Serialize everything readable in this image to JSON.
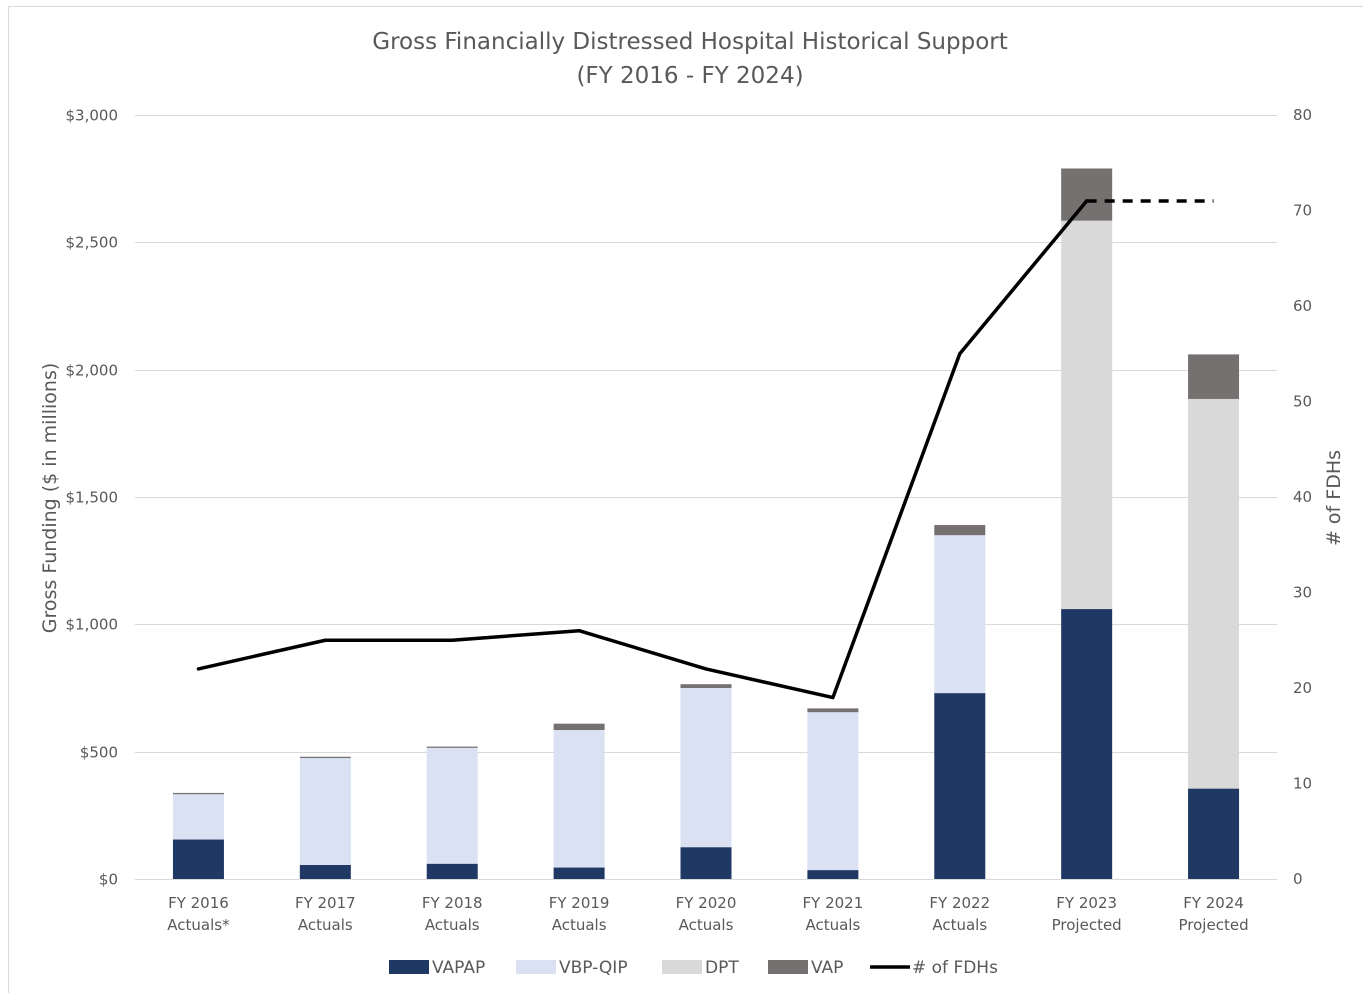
{
  "chart_data": {
    "type": "bar",
    "stacked": true,
    "title": "Gross Financially Distressed Hospital Historical Support",
    "subtitle": "(FY 2016 - FY 2024)",
    "ylabel": "Gross Funding ($ in millions)",
    "y2label": "# of FDHs",
    "ylim": [
      0,
      3000
    ],
    "y2lim": [
      0,
      80
    ],
    "yticks": [
      0,
      500,
      1000,
      1500,
      2000,
      2500,
      3000
    ],
    "ytick_labels": [
      "$0",
      "$500",
      "$1,000",
      "$1,500",
      "$2,000",
      "$2,500",
      "$3,000"
    ],
    "y2ticks": [
      0,
      10,
      20,
      30,
      40,
      50,
      60,
      70,
      80
    ],
    "y2tick_labels": [
      "0",
      "10",
      "20",
      "30",
      "40",
      "50",
      "60",
      "70",
      "80"
    ],
    "grid": true,
    "legend_position": "bottom",
    "categories": [
      {
        "line1": "FY 2016",
        "line2": "Actuals*"
      },
      {
        "line1": "FY 2017",
        "line2": "Actuals"
      },
      {
        "line1": "FY 2018",
        "line2": "Actuals"
      },
      {
        "line1": "FY 2019",
        "line2": "Actuals"
      },
      {
        "line1": "FY 2020",
        "line2": "Actuals"
      },
      {
        "line1": "FY 2021",
        "line2": "Actuals"
      },
      {
        "line1": "FY 2022",
        "line2": "Actuals"
      },
      {
        "line1": "FY 2023",
        "line2": "Projected"
      },
      {
        "line1": "FY 2024",
        "line2": "Projected"
      }
    ],
    "series": [
      {
        "name": "VAPAP",
        "color": "#1f3864",
        "values": [
          155,
          55,
          60,
          45,
          125,
          35,
          730,
          1060,
          355
        ]
      },
      {
        "name": "VBP-QIP",
        "color": "#d9e1f2",
        "values": [
          178,
          420,
          455,
          540,
          625,
          620,
          620,
          0,
          0
        ]
      },
      {
        "name": "DPT",
        "color": "#d9d9d9",
        "values": [
          0,
          0,
          0,
          0,
          0,
          0,
          0,
          1525,
          1530
        ]
      },
      {
        "name": "VAP",
        "color": "#767171",
        "values": [
          5,
          5,
          5,
          25,
          15,
          15,
          40,
          205,
          175
        ]
      }
    ],
    "line_series": {
      "name": "# of FDHs",
      "color": "#000000",
      "axis": "y2",
      "values": [
        22,
        25,
        25,
        26,
        22,
        19,
        55,
        71,
        71
      ],
      "dashed_from_index": 7
    }
  }
}
